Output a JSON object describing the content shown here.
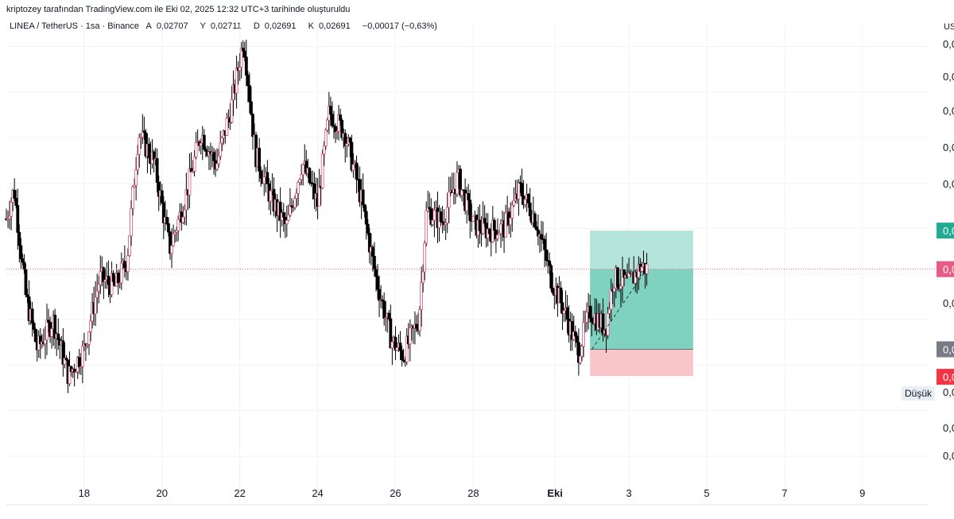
{
  "header": {
    "attribution": "kriptozey tarafından TradingView.com ile Eki 02, 2025 12:32 UTC+3 tarihinde oluşturuldu"
  },
  "legend": {
    "symbol": "LINEA / TetherUS · 1sa · Binance",
    "open_key": "A",
    "open": "0,02707",
    "high_key": "Y",
    "high": "0,02711",
    "low_key": "D",
    "low": "0,02691",
    "close_key": "K",
    "close": "0,02691",
    "change": "−0,00017 (−0,63%)"
  },
  "price_axis": {
    "currency": "US",
    "tick_labels": [
      "0,0",
      "0,0",
      "0,0",
      "0,0",
      "0,0",
      "0,0",
      "0,0",
      "0,0",
      "0,0",
      "0,0"
    ]
  },
  "badges": {
    "target": "0,0",
    "current": "0,0",
    "entry": "0,0",
    "stop": "0,0",
    "low_label": "Düşük",
    "low_value": "0,0"
  },
  "colors": {
    "up": "#ffffff",
    "down": "#000000",
    "wick": "#000000",
    "accent_pink": "#e0507e",
    "profit_zone": "#7fd1c0",
    "profit_zone_light": "#b4e4da",
    "loss_zone": "#f8c6c9",
    "target_badge": "#22ab94",
    "current_badge": "#e65c85",
    "entry_badge": "#787b86",
    "stop_badge": "#f23645"
  },
  "chart_data": {
    "type": "candlestick",
    "title": "LINEA / TetherUS · 1sa · Binance",
    "x_tick_labels": [
      "18",
      "20",
      "22",
      "24",
      "26",
      "28",
      "Eki",
      "3",
      "5",
      "7",
      "9"
    ],
    "y_range": [
      0.0195,
      0.0345
    ],
    "grid": true,
    "close_path": [
      {
        "x": "16",
        "y": 0.0282
      },
      {
        "x": "16.2",
        "y": 0.0292
      },
      {
        "x": "16.5",
        "y": 0.0256
      },
      {
        "x": "16.8",
        "y": 0.0238
      },
      {
        "x": "17.2",
        "y": 0.0248
      },
      {
        "x": "17.6",
        "y": 0.0229
      },
      {
        "x": "18",
        "y": 0.0238
      },
      {
        "x": "18.4",
        "y": 0.0262
      },
      {
        "x": "18.8",
        "y": 0.0259
      },
      {
        "x": "19.1",
        "y": 0.0268
      },
      {
        "x": "19.4",
        "y": 0.0311
      },
      {
        "x": "19.8",
        "y": 0.0301
      },
      {
        "x": "20.2",
        "y": 0.0272
      },
      {
        "x": "20.6",
        "y": 0.0289
      },
      {
        "x": "21",
        "y": 0.0311
      },
      {
        "x": "21.4",
        "y": 0.03
      },
      {
        "x": "21.8",
        "y": 0.0321
      },
      {
        "x": "22.1",
        "y": 0.0343
      },
      {
        "x": "22.4",
        "y": 0.0304
      },
      {
        "x": "22.8",
        "y": 0.0289
      },
      {
        "x": "23.2",
        "y": 0.0279
      },
      {
        "x": "23.6",
        "y": 0.0301
      },
      {
        "x": "24",
        "y": 0.0287
      },
      {
        "x": "24.3",
        "y": 0.0318
      },
      {
        "x": "24.7",
        "y": 0.0311
      },
      {
        "x": "25.1",
        "y": 0.029
      },
      {
        "x": "25.5",
        "y": 0.0262
      },
      {
        "x": "25.9",
        "y": 0.0241
      },
      {
        "x": "26.2",
        "y": 0.0236
      },
      {
        "x": "26.6",
        "y": 0.0248
      },
      {
        "x": "26.8",
        "y": 0.0285
      },
      {
        "x": "27.2",
        "y": 0.0281
      },
      {
        "x": "27.6",
        "y": 0.0296
      },
      {
        "x": "28",
        "y": 0.028
      },
      {
        "x": "28.4",
        "y": 0.0278
      },
      {
        "x": "28.8",
        "y": 0.0279
      },
      {
        "x": "29.2",
        "y": 0.0292
      },
      {
        "x": "29.6",
        "y": 0.0282
      },
      {
        "x": "30",
        "y": 0.0262
      },
      {
        "x": "30.4",
        "y": 0.0249
      },
      {
        "x": "30.7",
        "y": 0.0237
      },
      {
        "x": "31",
        "y": 0.0251
      },
      {
        "x": "31.4",
        "y": 0.0245
      },
      {
        "x": "31.6",
        "y": 0.0262
      },
      {
        "x": "32",
        "y": 0.026
      },
      {
        "x": "32.3",
        "y": 0.0266
      },
      {
        "x": "32.5",
        "y": 0.0265
      }
    ],
    "position": {
      "type": "long",
      "entry": 0.0238,
      "target": 0.0278,
      "stop": 0.0229,
      "current": 0.0265
    },
    "annotations": [
      "Düşük"
    ]
  }
}
